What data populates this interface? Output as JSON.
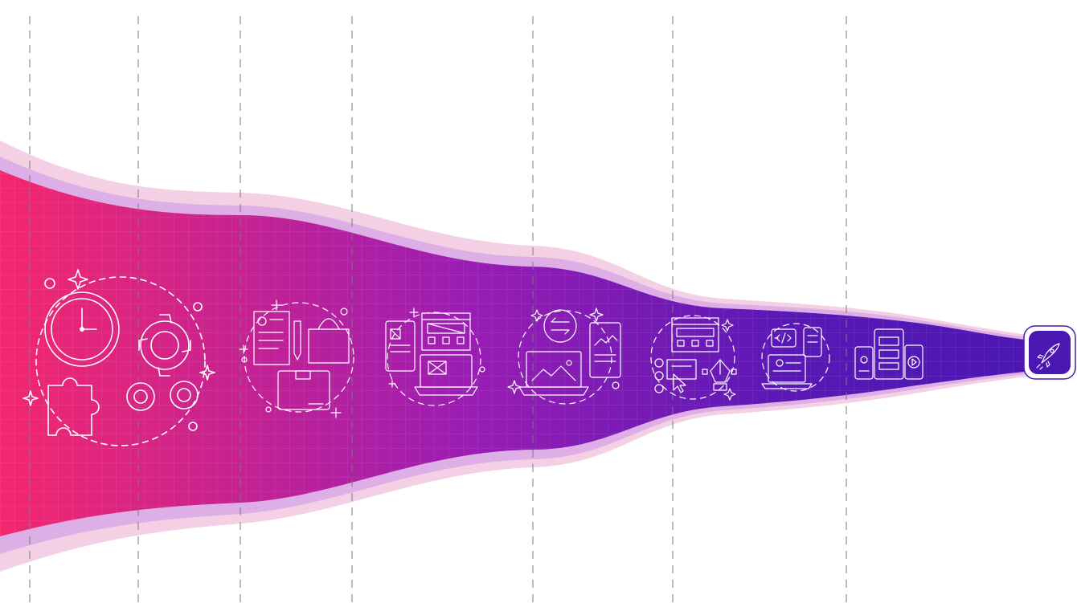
{
  "colors": {
    "funnel_start": "#f4276f",
    "funnel_mid": "#9a1db4",
    "funnel_end": "#4a17b3",
    "outer_band": "#f0c4dd",
    "inner_band": "#d9a8e6",
    "divider": "#7a7a7a",
    "icon_stroke": "#ffffff"
  },
  "stages": [
    {
      "name": "planning-stage",
      "icons": [
        "clock-icon",
        "gear-icon",
        "puzzle-icon",
        "sparkle-icon"
      ]
    },
    {
      "name": "requirements-stage",
      "icons": [
        "document-icon",
        "pen-icon",
        "shopping-bag-icon",
        "box-icon"
      ]
    },
    {
      "name": "wireframe-stage",
      "icons": [
        "wireframe-icon",
        "laptop-icon",
        "tablet-icon"
      ]
    },
    {
      "name": "prototype-stage",
      "icons": [
        "exchange-arrows-icon",
        "laptop-icon",
        "tablet-icon"
      ]
    },
    {
      "name": "design-stage",
      "icons": [
        "webpage-layout-icon",
        "pen-tool-icon",
        "cursor-icon"
      ]
    },
    {
      "name": "development-stage",
      "icons": [
        "code-icon",
        "laptop-icon",
        "phone-icon"
      ]
    },
    {
      "name": "multi-device-stage",
      "icons": [
        "phone-icon",
        "tablet-icon",
        "play-icon"
      ]
    }
  ],
  "launch": {
    "icon": "rocket-icon"
  }
}
